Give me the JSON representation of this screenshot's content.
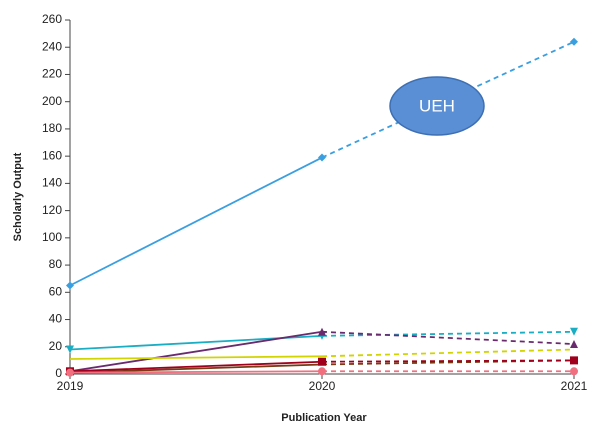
{
  "chart_data": {
    "type": "line",
    "y_label": "Scholarly Output",
    "x_label": "Publication Year",
    "annotation": "UEH",
    "x": [
      2019,
      2020,
      2021
    ],
    "xlim": [
      2019,
      2021
    ],
    "xticks": [
      2019,
      2020,
      2021
    ],
    "ylim": [
      0,
      260
    ],
    "yticks": [
      0,
      20,
      40,
      60,
      80,
      100,
      120,
      140,
      160,
      180,
      200,
      220,
      240,
      260
    ],
    "dash_from_x": 2020,
    "series": [
      {
        "color": "#3a9fe0",
        "marker": "diamond",
        "values": [
          65,
          159,
          244
        ]
      },
      {
        "color": "#1aaec4",
        "marker": "triangle-down",
        "values": [
          18,
          28,
          31
        ]
      },
      {
        "color": "#6a2a6e",
        "marker": "triangle-up",
        "values": [
          2,
          31,
          22
        ]
      },
      {
        "color": "#d2d400",
        "marker": "none",
        "values": [
          11,
          13,
          18
        ]
      },
      {
        "color": "#7a3a14",
        "marker": "none",
        "values": [
          1,
          7,
          10
        ]
      },
      {
        "color": "#a0001c",
        "marker": "square",
        "values": [
          2,
          9,
          10
        ]
      },
      {
        "color": "#f07080",
        "marker": "circle",
        "values": [
          1,
          2,
          2
        ]
      }
    ]
  }
}
